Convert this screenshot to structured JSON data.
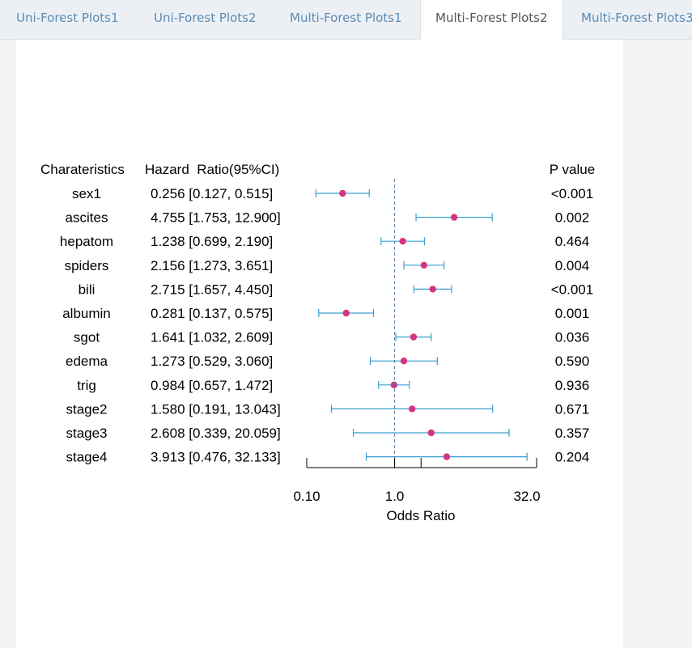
{
  "tabs": [
    {
      "label": "Uni-Forest Plots1",
      "active": false
    },
    {
      "label": "Uni-Forest Plots2",
      "active": false
    },
    {
      "label": "Multi-Forest Plots1",
      "active": false
    },
    {
      "label": "Multi-Forest Plots2",
      "active": true
    },
    {
      "label": "Multi-Forest Plots3",
      "active": false
    }
  ],
  "chart_data": {
    "type": "forest",
    "columns": {
      "characteristics": "Charateristics",
      "hr": "Hazard  Ratio(95%CI)",
      "p": "P value"
    },
    "xlabel": "Odds Ratio",
    "x_scale": "log",
    "xlim": [
      0.1,
      32.0
    ],
    "ticks": [
      {
        "value": 0.1,
        "label": "0.10"
      },
      {
        "value": 1.0,
        "label": "1.0"
      },
      {
        "value": 32.0,
        "label": "32.0"
      }
    ],
    "reference_line": 1.0,
    "colors": {
      "point": "#d63384",
      "ci": "#3a9fcf"
    },
    "rows": [
      {
        "name": "sex1",
        "hr": 0.256,
        "low": 0.127,
        "high": 0.515,
        "hr_text": "0.256 [0.127, 0.515]",
        "p": "<0.001"
      },
      {
        "name": "ascites",
        "hr": 4.755,
        "low": 1.753,
        "high": 12.9,
        "hr_text": "4.755 [1.753, 12.900]",
        "p": "0.002"
      },
      {
        "name": "hepatom",
        "hr": 1.238,
        "low": 0.699,
        "high": 2.19,
        "hr_text": "1.238 [0.699, 2.190]",
        "p": "0.464"
      },
      {
        "name": "spiders",
        "hr": 2.156,
        "low": 1.273,
        "high": 3.651,
        "hr_text": "2.156 [1.273, 3.651]",
        "p": "0.004"
      },
      {
        "name": "bili",
        "hr": 2.715,
        "low": 1.657,
        "high": 4.45,
        "hr_text": "2.715 [1.657, 4.450]",
        "p": "<0.001"
      },
      {
        "name": "albumin",
        "hr": 0.281,
        "low": 0.137,
        "high": 0.575,
        "hr_text": "0.281 [0.137, 0.575]",
        "p": "0.001"
      },
      {
        "name": "sgot",
        "hr": 1.641,
        "low": 1.032,
        "high": 2.609,
        "hr_text": "1.641 [1.032, 2.609]",
        "p": "0.036"
      },
      {
        "name": "edema",
        "hr": 1.273,
        "low": 0.529,
        "high": 3.06,
        "hr_text": "1.273 [0.529, 3.060]",
        "p": "0.590"
      },
      {
        "name": "trig",
        "hr": 0.984,
        "low": 0.657,
        "high": 1.472,
        "hr_text": "0.984 [0.657, 1.472]",
        "p": "0.936"
      },
      {
        "name": "stage2",
        "hr": 1.58,
        "low": 0.191,
        "high": 13.043,
        "hr_text": "1.580 [0.191, 13.043]",
        "p": "0.671"
      },
      {
        "name": "stage3",
        "hr": 2.608,
        "low": 0.339,
        "high": 20.059,
        "hr_text": "2.608 [0.339, 20.059]",
        "p": "0.357"
      },
      {
        "name": "stage4",
        "hr": 3.913,
        "low": 0.476,
        "high": 32.133,
        "hr_text": "3.913 [0.476, 32.133]",
        "p": "0.204"
      }
    ]
  }
}
